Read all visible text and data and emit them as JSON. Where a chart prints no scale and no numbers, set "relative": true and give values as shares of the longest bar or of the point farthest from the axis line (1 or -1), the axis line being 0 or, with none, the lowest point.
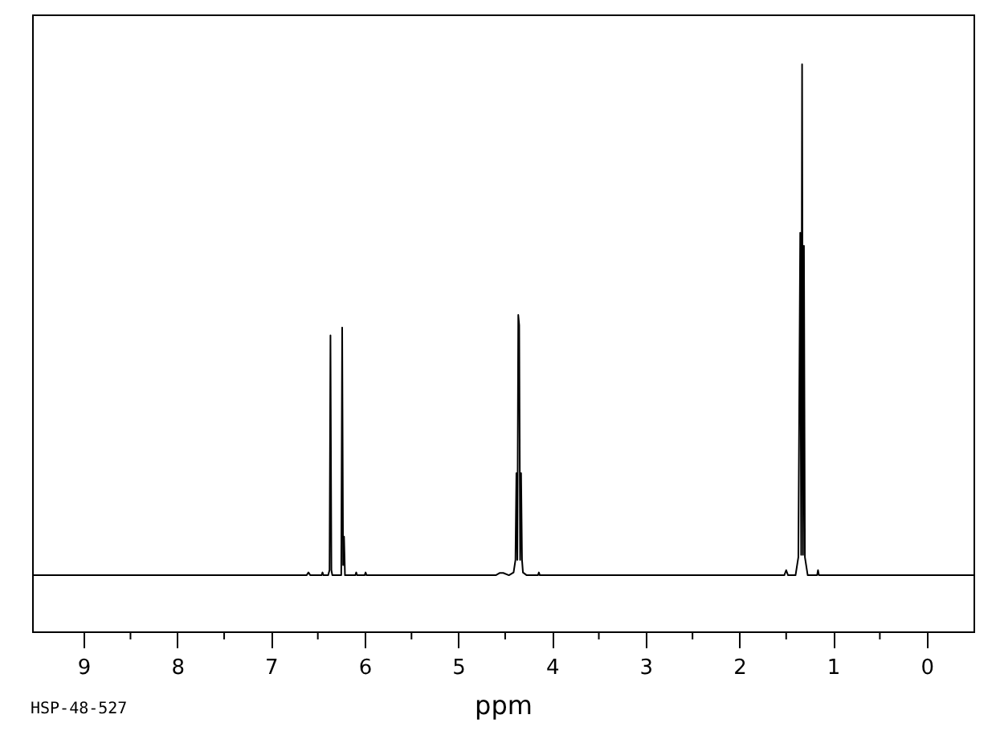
{
  "chart_data": {
    "type": "line",
    "relative": true,
    "xlabel": "ppm",
    "annotations": [
      "HSP-48-527"
    ],
    "color": "#000000",
    "xlim": [
      9.55,
      -0.5
    ],
    "xticks": [
      9,
      {
        "value": 8.5,
        "label": null
      },
      8,
      {
        "value": 7.5,
        "label": null
      },
      7,
      {
        "value": 6.5,
        "label": null
      },
      6,
      {
        "value": 5.5,
        "label": null
      },
      5,
      {
        "value": 4.5,
        "label": null
      },
      4,
      {
        "value": 3.5,
        "label": null
      },
      3,
      {
        "value": 2.5,
        "label": null
      },
      2,
      {
        "value": 1.5,
        "label": null
      },
      1,
      {
        "value": 0.5,
        "label": null
      },
      0
    ],
    "x": [
      9.55,
      6.62,
      6.6,
      6.58,
      6.46,
      6.45,
      6.44,
      6.39,
      6.375,
      6.365,
      6.355,
      6.345,
      6.25,
      6.24,
      6.23,
      6.22,
      6.21,
      6.1,
      6.09,
      6.08,
      6.0,
      5.99,
      5.98,
      4.6,
      4.56,
      4.52,
      4.46,
      4.41,
      4.39,
      4.38,
      4.37,
      4.36,
      4.35,
      4.34,
      4.33,
      4.32,
      4.31,
      4.27,
      4.15,
      4.14,
      4.13,
      1.52,
      1.5,
      1.48,
      1.4,
      1.37,
      1.35,
      1.34,
      1.33,
      1.32,
      1.31,
      1.3,
      1.27,
      1.17,
      1.16,
      1.15,
      -0.5
    ],
    "values": [
      0.099,
      0.099,
      0.104,
      0.099,
      0.099,
      0.104,
      0.099,
      0.099,
      0.108,
      0.522,
      0.108,
      0.099,
      0.099,
      0.536,
      0.117,
      0.167,
      0.099,
      0.099,
      0.104,
      0.099,
      0.099,
      0.104,
      0.099,
      0.099,
      0.103,
      0.103,
      0.099,
      0.104,
      0.126,
      0.279,
      0.126,
      0.558,
      0.54,
      0.126,
      0.279,
      0.126,
      0.104,
      0.099,
      0.099,
      0.104,
      0.099,
      0.099,
      0.108,
      0.099,
      0.099,
      0.131,
      0.703,
      0.135,
      1.0,
      0.135,
      0.68,
      0.131,
      0.099,
      0.099,
      0.108,
      0.099,
      0.099
    ]
  }
}
